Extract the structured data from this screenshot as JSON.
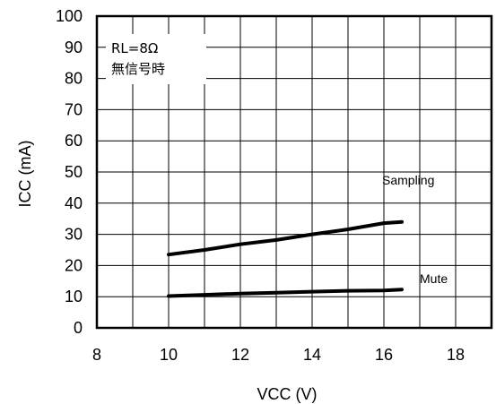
{
  "chart_data": {
    "type": "line",
    "title": "",
    "xlabel": "VCC (V)",
    "ylabel": "ICC (mA)",
    "xlim": [
      8,
      19
    ],
    "ylim": [
      0,
      100
    ],
    "xticks": [
      "8",
      "10",
      "12",
      "14",
      "16",
      "18"
    ],
    "yticks": [
      "0",
      "10",
      "20",
      "30",
      "40",
      "50",
      "60",
      "70",
      "80",
      "90",
      "100"
    ],
    "grid": true,
    "annotations": [
      "RL=8Ω",
      "無信号時"
    ],
    "series": [
      {
        "name": "Sampling",
        "x": [
          10,
          11,
          12,
          13,
          14,
          15,
          16,
          16.5
        ],
        "values": [
          23.5,
          25,
          26.8,
          28.2,
          30,
          31.6,
          33.6,
          34
        ]
      },
      {
        "name": "Mute",
        "x": [
          10,
          11,
          12,
          13,
          14,
          15,
          16,
          16.5
        ],
        "values": [
          10.2,
          10.6,
          11,
          11.3,
          11.6,
          11.9,
          12,
          12.3
        ]
      }
    ]
  }
}
